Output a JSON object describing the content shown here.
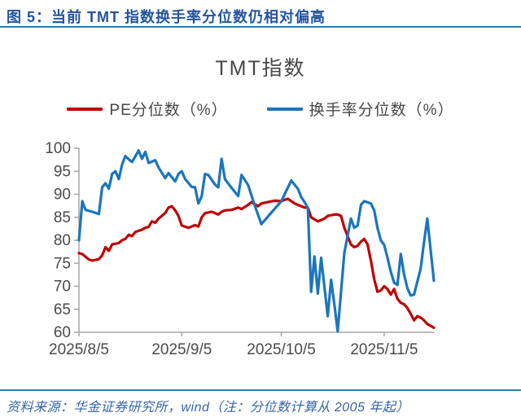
{
  "figure_caption": "图 5：当前 TMT 指数换手率分位数仍相对偏高",
  "source_note": "资料来源：华金证券研究所，wind（注：分位数计算从 2005 年起）",
  "colors": {
    "caption_blue": "#24549c",
    "rule_blue": "#2d7fb0",
    "axis_line": "#a6a6a6",
    "axis_text": "#4a4a4a",
    "pe_red": "#c00000",
    "turnover_blue": "#1b75bc"
  },
  "chart_data": {
    "type": "line",
    "title": "TMT指数",
    "legend_position": "top",
    "grid": false,
    "x_axis": {
      "range": [
        "2025/8/5",
        "2025/11/20"
      ],
      "ticks": [
        "2025/8/5",
        "2025/9/5",
        "2025/10/5",
        "2025/11/5"
      ],
      "tick_labels": [
        "2025/8/5",
        "2025/9/5",
        "2025/10/5",
        "2025/11/5"
      ]
    },
    "y_axis": {
      "min": 60,
      "max": 100,
      "step": 5,
      "ticks": [
        60,
        65,
        70,
        75,
        80,
        85,
        90,
        95,
        100
      ]
    },
    "series": [
      {
        "name": "PE分位数（%）",
        "color": "#c00000",
        "points": [
          [
            "2025/8/5",
            77.2
          ],
          [
            "2025/8/6",
            77.0
          ],
          [
            "2025/8/7",
            76.4
          ],
          [
            "2025/8/8",
            75.8
          ],
          [
            "2025/8/9",
            75.6
          ],
          [
            "2025/8/11",
            75.9
          ],
          [
            "2025/8/12",
            76.7
          ],
          [
            "2025/8/13",
            78.5
          ],
          [
            "2025/8/14",
            77.7
          ],
          [
            "2025/8/15",
            79.1
          ],
          [
            "2025/8/17",
            79.4
          ],
          [
            "2025/8/18",
            80.0
          ],
          [
            "2025/8/19",
            80.3
          ],
          [
            "2025/8/20",
            81.2
          ],
          [
            "2025/8/21",
            80.9
          ],
          [
            "2025/8/22",
            81.8
          ],
          [
            "2025/8/24",
            82.3
          ],
          [
            "2025/8/25",
            82.7
          ],
          [
            "2025/8/26",
            82.9
          ],
          [
            "2025/8/27",
            84.1
          ],
          [
            "2025/8/28",
            83.8
          ],
          [
            "2025/8/29",
            84.7
          ],
          [
            "2025/8/31",
            85.9
          ],
          [
            "2025/9/1",
            87.1
          ],
          [
            "2025/9/2",
            87.4
          ],
          [
            "2025/9/3",
            86.5
          ],
          [
            "2025/9/4",
            85.3
          ],
          [
            "2025/9/5",
            83.2
          ],
          [
            "2025/9/7",
            82.7
          ],
          [
            "2025/9/9",
            83.3
          ],
          [
            "2025/9/10",
            83.0
          ],
          [
            "2025/9/11",
            85.0
          ],
          [
            "2025/9/12",
            85.9
          ],
          [
            "2025/9/14",
            86.2
          ],
          [
            "2025/9/15",
            85.9
          ],
          [
            "2025/9/16",
            85.6
          ],
          [
            "2025/9/17",
            86.2
          ],
          [
            "2025/9/18",
            86.5
          ],
          [
            "2025/9/20",
            86.6
          ],
          [
            "2025/9/22",
            87.1
          ],
          [
            "2025/9/23",
            86.8
          ],
          [
            "2025/9/25",
            87.7
          ],
          [
            "2025/9/26",
            88.3
          ],
          [
            "2025/9/28",
            87.4
          ],
          [
            "2025/9/29",
            88.0
          ],
          [
            "2025/10/1",
            88.3
          ],
          [
            "2025/10/3",
            88.6
          ],
          [
            "2025/10/5",
            88.5
          ],
          [
            "2025/10/6",
            88.8
          ],
          [
            "2025/10/7",
            89.0
          ],
          [
            "2025/10/9",
            88.0
          ],
          [
            "2025/10/10",
            87.7
          ],
          [
            "2025/10/12",
            87.1
          ],
          [
            "2025/10/13",
            87.1
          ],
          [
            "2025/10/14",
            85.0
          ],
          [
            "2025/10/16",
            84.1
          ],
          [
            "2025/10/17",
            84.4
          ],
          [
            "2025/10/18",
            84.7
          ],
          [
            "2025/10/19",
            85.3
          ],
          [
            "2025/10/21",
            85.6
          ],
          [
            "2025/10/22",
            85.6
          ],
          [
            "2025/10/23",
            85.3
          ],
          [
            "2025/10/24",
            82.7
          ],
          [
            "2025/10/26",
            79.1
          ],
          [
            "2025/10/27",
            78.5
          ],
          [
            "2025/10/28",
            78.8
          ],
          [
            "2025/10/29",
            79.7
          ],
          [
            "2025/10/30",
            80.3
          ],
          [
            "2025/10/31",
            79.1
          ],
          [
            "2025/11/1",
            75.6
          ],
          [
            "2025/11/2",
            71.5
          ],
          [
            "2025/11/3",
            68.8
          ],
          [
            "2025/11/4",
            69.1
          ],
          [
            "2025/11/5",
            70.0
          ],
          [
            "2025/11/6",
            69.4
          ],
          [
            "2025/11/7",
            68.2
          ],
          [
            "2025/11/8",
            69.4
          ],
          [
            "2025/11/9",
            67.3
          ],
          [
            "2025/11/10",
            66.4
          ],
          [
            "2025/11/11",
            66.1
          ],
          [
            "2025/11/12",
            65.3
          ],
          [
            "2025/11/13",
            64.0
          ],
          [
            "2025/11/14",
            62.6
          ],
          [
            "2025/11/15",
            63.5
          ],
          [
            "2025/11/16",
            63.2
          ],
          [
            "2025/11/17",
            62.6
          ],
          [
            "2025/11/18",
            61.8
          ],
          [
            "2025/11/20",
            61.0
          ]
        ]
      },
      {
        "name": "换手率分位数（%）",
        "color": "#1b75bc",
        "points": [
          [
            "2025/8/5",
            80.0
          ],
          [
            "2025/8/6",
            88.5
          ],
          [
            "2025/8/7",
            86.6
          ],
          [
            "2025/8/9",
            86.2
          ],
          [
            "2025/8/11",
            85.7
          ],
          [
            "2025/8/12",
            91.5
          ],
          [
            "2025/8/13",
            92.4
          ],
          [
            "2025/8/14",
            91.2
          ],
          [
            "2025/8/15",
            94.4
          ],
          [
            "2025/8/16",
            95.0
          ],
          [
            "2025/8/17",
            93.3
          ],
          [
            "2025/8/18",
            96.5
          ],
          [
            "2025/8/19",
            98.3
          ],
          [
            "2025/8/20",
            97.6
          ],
          [
            "2025/8/21",
            97.0
          ],
          [
            "2025/8/23",
            99.5
          ],
          [
            "2025/8/24",
            97.7
          ],
          [
            "2025/8/25",
            99.2
          ],
          [
            "2025/8/26",
            96.8
          ],
          [
            "2025/8/28",
            97.4
          ],
          [
            "2025/8/29",
            95.8
          ],
          [
            "2025/8/31",
            93.5
          ],
          [
            "2025/9/1",
            94.6
          ],
          [
            "2025/9/3",
            92.8
          ],
          [
            "2025/9/4",
            94.4
          ],
          [
            "2025/9/5",
            95.0
          ],
          [
            "2025/9/6",
            93.3
          ],
          [
            "2025/9/8",
            91.6
          ],
          [
            "2025/9/9",
            91.5
          ],
          [
            "2025/9/10",
            88.0
          ],
          [
            "2025/9/11",
            89.6
          ],
          [
            "2025/9/12",
            94.4
          ],
          [
            "2025/9/13",
            94.2
          ],
          [
            "2025/9/15",
            92.1
          ],
          [
            "2025/9/16",
            91.5
          ],
          [
            "2025/9/17",
            97.7
          ],
          [
            "2025/9/18",
            93.3
          ],
          [
            "2025/9/20",
            91.4
          ],
          [
            "2025/9/22",
            89.6
          ],
          [
            "2025/9/23",
            94.2
          ],
          [
            "2025/9/25",
            92.0
          ],
          [
            "2025/9/27",
            87.5
          ],
          [
            "2025/9/29",
            83.5
          ],
          [
            "2025/10/2",
            86.0
          ],
          [
            "2025/10/5",
            88.5
          ],
          [
            "2025/10/8",
            93.0
          ],
          [
            "2025/10/10",
            91.2
          ],
          [
            "2025/10/11",
            89.4
          ],
          [
            "2025/10/12",
            88.3
          ],
          [
            "2025/10/13",
            87.0
          ],
          [
            "2025/10/14",
            68.8
          ],
          [
            "2025/10/15",
            76.5
          ],
          [
            "2025/10/16",
            68.4
          ],
          [
            "2025/10/17",
            76.2
          ],
          [
            "2025/10/19",
            63.5
          ],
          [
            "2025/10/20",
            71.4
          ],
          [
            "2025/10/21",
            66.0
          ],
          [
            "2025/10/22",
            60.2
          ],
          [
            "2025/10/24",
            77.3
          ],
          [
            "2025/10/26",
            84.7
          ],
          [
            "2025/10/27",
            82.7
          ],
          [
            "2025/10/28",
            83.2
          ],
          [
            "2025/10/29",
            87.7
          ],
          [
            "2025/10/30",
            88.5
          ],
          [
            "2025/11/1",
            88.0
          ],
          [
            "2025/11/2",
            86.5
          ],
          [
            "2025/11/3",
            82.7
          ],
          [
            "2025/11/4",
            80.0
          ],
          [
            "2025/11/5",
            79.0
          ],
          [
            "2025/11/6",
            76.2
          ],
          [
            "2025/11/7",
            73.2
          ],
          [
            "2025/11/8",
            70.8
          ],
          [
            "2025/11/9",
            70.3
          ],
          [
            "2025/11/10",
            77.0
          ],
          [
            "2025/11/11",
            72.6
          ],
          [
            "2025/11/12",
            69.6
          ],
          [
            "2025/11/13",
            68.0
          ],
          [
            "2025/11/14",
            68.2
          ],
          [
            "2025/11/16",
            73.8
          ],
          [
            "2025/11/17",
            79.5
          ],
          [
            "2025/11/18",
            84.7
          ],
          [
            "2025/11/19",
            78.0
          ],
          [
            "2025/11/20",
            71.2
          ]
        ]
      }
    ]
  }
}
